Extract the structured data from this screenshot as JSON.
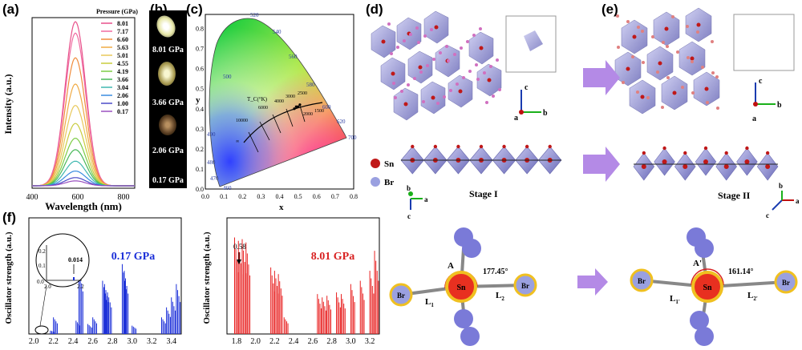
{
  "labels": {
    "a": "(a)",
    "b": "(b)",
    "c": "(c)",
    "d": "(d)",
    "e": "(e)",
    "f": "(f)"
  },
  "panel_a": {
    "ylabel": "Intensity (a.u.)",
    "xlabel": "Wavelength (nm)",
    "xticks": [
      "400",
      "600",
      "800"
    ],
    "legend_title": "Pressure (GPa)",
    "colors": [
      "#e8508a",
      "#f06aa0",
      "#f08c3c",
      "#f0aa44",
      "#e8c85a",
      "#c8cc3e",
      "#7ccc46",
      "#48b858",
      "#40b8b0",
      "#3a8ce0",
      "#4a4ac8",
      "#9a50c0"
    ],
    "chart_data": {
      "type": "line",
      "title": "",
      "xlabel": "Wavelength (nm)",
      "ylabel": "Intensity (a.u.)",
      "xlim": [
        400,
        850
      ],
      "series": [
        {
          "name": "8.01",
          "peak_x": 590,
          "peak_y": 1.0
        },
        {
          "name": "7.17",
          "peak_x": 590,
          "peak_y": 0.93
        },
        {
          "name": "6.60",
          "peak_x": 590,
          "peak_y": 0.78
        },
        {
          "name": "5.63",
          "peak_x": 590,
          "peak_y": 0.62
        },
        {
          "name": "5.01",
          "peak_x": 590,
          "peak_y": 0.49
        },
        {
          "name": "4.55",
          "peak_x": 590,
          "peak_y": 0.38
        },
        {
          "name": "4.19",
          "peak_x": 590,
          "peak_y": 0.29
        },
        {
          "name": "3.66",
          "peak_x": 590,
          "peak_y": 0.22
        },
        {
          "name": "3.04",
          "peak_x": 590,
          "peak_y": 0.15
        },
        {
          "name": "2.06",
          "peak_x": 590,
          "peak_y": 0.09
        },
        {
          "name": "1.00",
          "peak_x": 590,
          "peak_y": 0.05
        },
        {
          "name": "0.17",
          "peak_x": 590,
          "peak_y": 0.03
        }
      ]
    }
  },
  "panel_b": {
    "photos": [
      "8.01 GPa",
      "3.66 GPa",
      "2.06 GPa",
      "0.17 GPa"
    ]
  },
  "panel_c": {
    "xlabel": "x",
    "ylabel": "y",
    "xticks": [
      "0.0",
      "0.1",
      "0.2",
      "0.3",
      "0.4",
      "0.5",
      "0.6",
      "0.7",
      "0.8"
    ],
    "yticks": [
      "0.0",
      "0.1",
      "0.2",
      "0.3",
      "0.4",
      "0.5",
      "0.6",
      "0.7",
      "0.8"
    ],
    "wavelengths": [
      "460",
      "470",
      "480",
      "490",
      "500",
      "520",
      "540",
      "560",
      "580",
      "600",
      "620",
      "700"
    ],
    "tc_label": "T_C(°K)",
    "temps": [
      "10000",
      "6000",
      "4000",
      "3000",
      "2500",
      "2000",
      "1500",
      "∞"
    ],
    "chart_data": {
      "type": "scatter",
      "title": "",
      "xlim": [
        0,
        0.8
      ],
      "ylim": [
        0,
        0.85
      ],
      "points": [
        {
          "x": 0.48,
          "y": 0.4
        },
        {
          "x": 0.49,
          "y": 0.41
        },
        {
          "x": 0.5,
          "y": 0.41
        },
        {
          "x": 0.51,
          "y": 0.42
        }
      ]
    }
  },
  "panel_d": {
    "stage": "Stage I",
    "elements": [
      "Sn",
      "Br"
    ],
    "axes": [
      "c",
      "b",
      "a"
    ]
  },
  "panel_e": {
    "stage": "Stage II",
    "axes": [
      "c",
      "b",
      "a"
    ]
  },
  "panel_f_left": {
    "pressure": "0.17 GPa",
    "ylabel": "Oscillator strength (a.u.)",
    "xticks": [
      "2.0",
      "2.2",
      "2.4",
      "2.6",
      "2.8",
      "3.0",
      "3.2",
      "3.4"
    ],
    "inset_value": "0.014",
    "inset_yticks": [
      "0.2",
      "0.1",
      "0.0"
    ],
    "inset_xticks": [
      "2.0",
      "2.2"
    ],
    "chart_data": {
      "type": "bar",
      "xlim": [
        1.95,
        3.5
      ],
      "x": [
        2.17,
        2.2,
        2.43,
        2.46,
        2.55,
        2.6,
        2.7,
        2.72,
        2.75,
        2.9,
        2.92,
        3.0,
        3.3,
        3.35,
        3.4,
        3.45
      ],
      "values": [
        0.02,
        0.1,
        0.08,
        0.4,
        0.06,
        0.1,
        0.32,
        0.3,
        0.25,
        0.42,
        0.38,
        0.05,
        0.1,
        0.16,
        0.22,
        0.3
      ]
    }
  },
  "panel_f_right": {
    "pressure": "8.01 GPa",
    "ylabel": "Oscillator strength (a.u.)",
    "arrow_label": "0.58",
    "xticks": [
      "1.8",
      "2.0",
      "2.2",
      "2.4",
      "2.6",
      "2.8",
      "3.0",
      "3.2"
    ],
    "chart_data": {
      "type": "bar",
      "xlim": [
        1.7,
        3.3
      ],
      "x": [
        1.78,
        1.82,
        1.86,
        1.9,
        2.16,
        2.2,
        2.24,
        2.3,
        2.65,
        2.7,
        2.75,
        2.85,
        2.9,
        3.0,
        3.1,
        3.2,
        3.25
      ],
      "values": [
        0.58,
        0.56,
        0.57,
        0.55,
        0.4,
        0.38,
        0.36,
        0.1,
        0.24,
        0.22,
        0.23,
        0.25,
        0.24,
        0.3,
        0.32,
        0.38,
        0.5
      ]
    }
  },
  "bottom_right": {
    "left": {
      "A": "A",
      "angle": "177.45°",
      "L1": "L",
      "L1sub": "1",
      "L2": "L",
      "L2sub": "2"
    },
    "right": {
      "A": "A'",
      "angle": "161.14°",
      "L1": "L",
      "L1sub": "1'",
      "L2": "L",
      "L2sub": "2'"
    },
    "atoms": {
      "sn": "Sn",
      "br": "Br"
    }
  }
}
